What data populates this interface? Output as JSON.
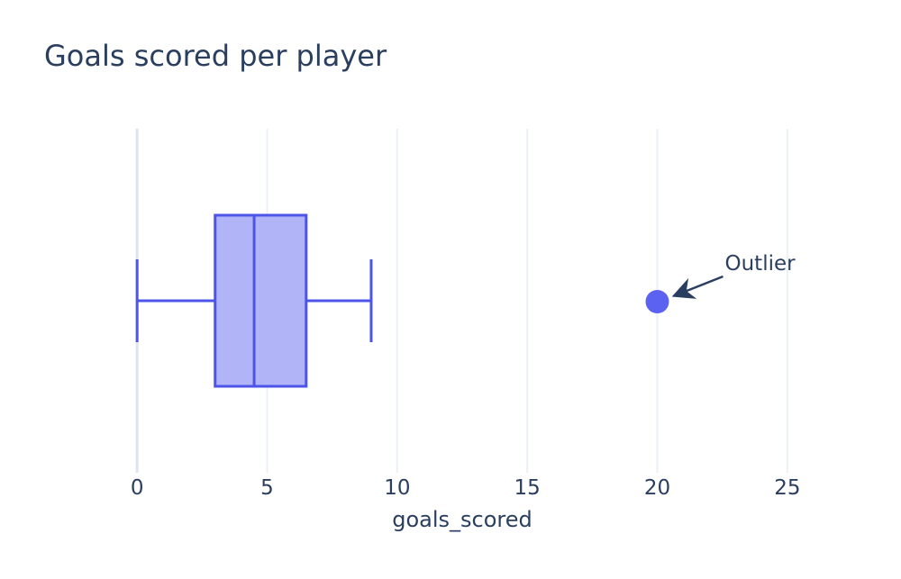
{
  "title": "Goals scored per player",
  "colors": {
    "accent_line": "#4c55e8",
    "box_fill": "#b1b5f8",
    "marker": "#5b61f1",
    "text": "#2a3f5f",
    "grid": "#ebf0f8",
    "zeroline": "#dfe4f3",
    "background": "#ffffff"
  },
  "chart_data": {
    "type": "box",
    "orientation": "horizontal",
    "title": "Goals scored per player",
    "xlabel": "goals_scored",
    "xlim": [
      -2.5,
      27.5
    ],
    "xticks": [
      0,
      5,
      10,
      15,
      20,
      25
    ],
    "grid": true,
    "legend": "none",
    "series": [
      {
        "name": "goals_scored",
        "whisker_low": 0,
        "q1": 3,
        "median": 4.5,
        "q3": 6.5,
        "whisker_high": 9,
        "outliers": [
          20
        ]
      }
    ],
    "annotations": [
      {
        "text": "Outlier",
        "x": 20,
        "arrow": true
      }
    ]
  }
}
